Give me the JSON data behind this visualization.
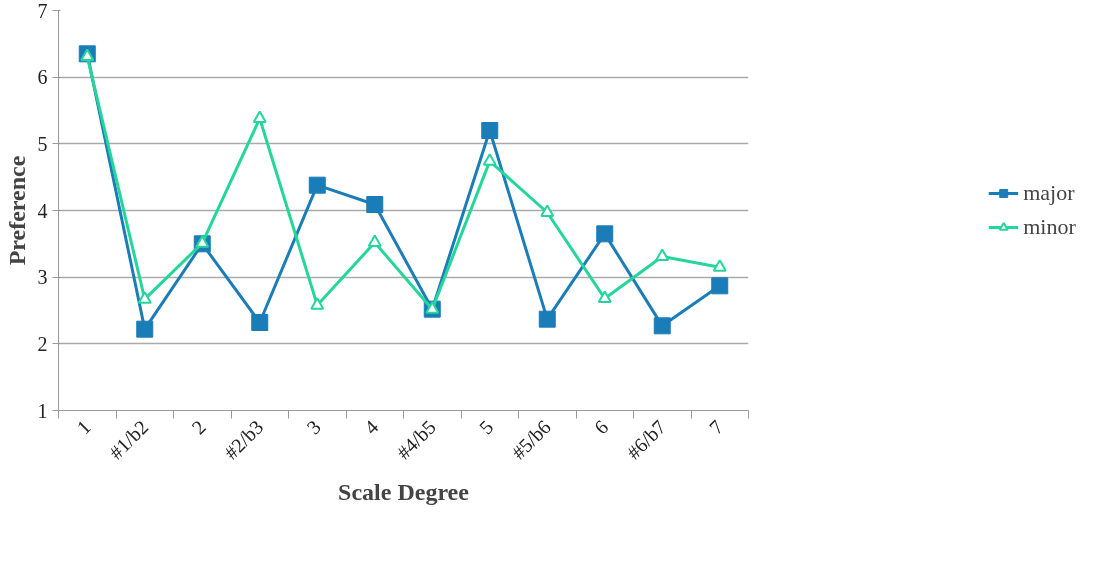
{
  "chart_data": {
    "type": "line",
    "xlabel": "Scale Degree",
    "ylabel": "Preference",
    "categories": [
      "1",
      "#1/b2",
      "2",
      "#2/b3",
      "3",
      "4",
      "#4/b5",
      "5",
      "#5/b6",
      "6",
      "#6/b7",
      "7"
    ],
    "series": [
      {
        "name": "major",
        "color": "#1b7db8",
        "marker": "square",
        "values": [
          6.35,
          2.22,
          3.5,
          2.32,
          4.38,
          4.09,
          2.52,
          5.2,
          2.37,
          3.65,
          2.27,
          2.87
        ]
      },
      {
        "name": "minor",
        "color": "#25d69a",
        "marker": "triangle",
        "values": [
          6.31,
          2.67,
          3.51,
          5.38,
          2.58,
          3.52,
          2.52,
          4.74,
          3.97,
          2.68,
          3.31,
          3.15
        ]
      }
    ],
    "ylim": [
      1,
      7
    ],
    "yticks": [
      1,
      2,
      3,
      4,
      5,
      6,
      7
    ],
    "grid": "y",
    "legend": "right",
    "line_style": "solid"
  }
}
